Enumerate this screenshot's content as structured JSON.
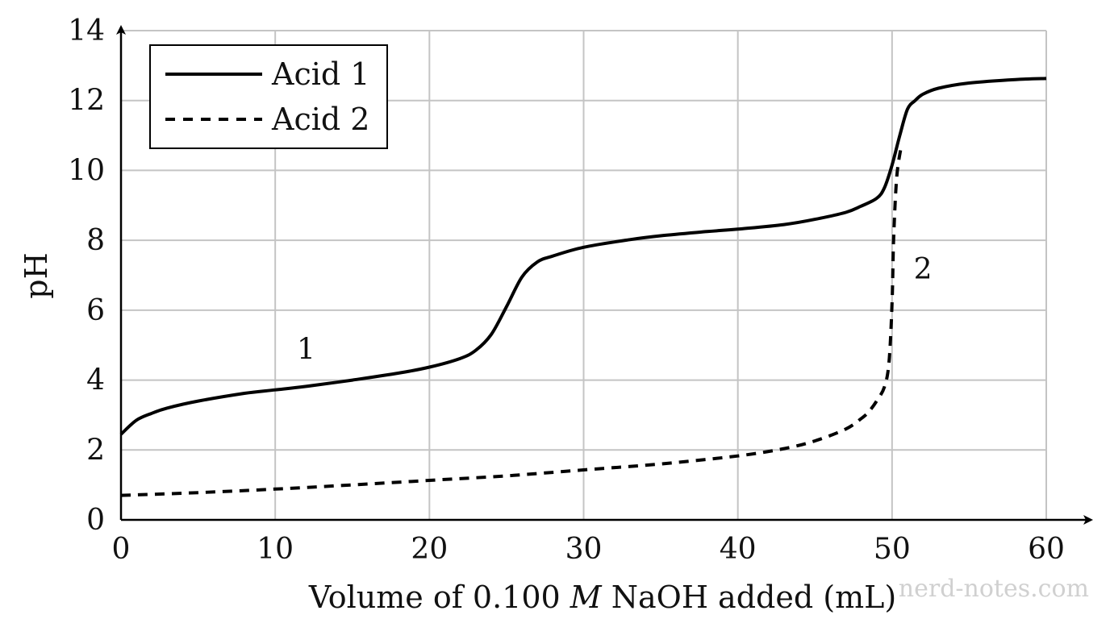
{
  "chart_data": {
    "type": "line",
    "title": "",
    "xlabel_prefix": "Volume of 0.100 ",
    "xlabel_italic": "M",
    "xlabel_suffix": " NaOH added (mL)",
    "ylabel": "pH",
    "xlim": [
      0,
      60
    ],
    "ylim": [
      0,
      14
    ],
    "xticks": [
      0,
      10,
      20,
      30,
      40,
      50,
      60
    ],
    "yticks": [
      0,
      2,
      4,
      6,
      8,
      10,
      12,
      14
    ],
    "grid": true,
    "legend_position": "top-left",
    "series": [
      {
        "name": "Acid 1",
        "style": "solid",
        "color": "#000000",
        "x": [
          0,
          1,
          2,
          3,
          5,
          8,
          10,
          12,
          15,
          18,
          20,
          22,
          23,
          24,
          25,
          26,
          27,
          28,
          30,
          33,
          35,
          38,
          40,
          43,
          45,
          47,
          48,
          49,
          49.5,
          50,
          50.5,
          51,
          51.5,
          52,
          53,
          55,
          58,
          60
        ],
        "y": [
          2.45,
          2.85,
          3.05,
          3.2,
          3.4,
          3.62,
          3.72,
          3.82,
          4.0,
          4.2,
          4.37,
          4.62,
          4.85,
          5.3,
          6.1,
          6.95,
          7.38,
          7.55,
          7.8,
          8.02,
          8.13,
          8.25,
          8.32,
          8.45,
          8.6,
          8.8,
          8.98,
          9.2,
          9.5,
          10.15,
          11.0,
          11.75,
          12.0,
          12.18,
          12.35,
          12.5,
          12.6,
          12.63
        ]
      },
      {
        "name": "Acid 2",
        "style": "dashed",
        "color": "#000000",
        "x": [
          0,
          5,
          10,
          15,
          20,
          25,
          30,
          35,
          40,
          43,
          45,
          47,
          48,
          48.5,
          49,
          49.5,
          49.8,
          50,
          50.1,
          50.3,
          50.6
        ],
        "y": [
          0.7,
          0.78,
          0.88,
          1.0,
          1.13,
          1.26,
          1.43,
          1.6,
          1.83,
          2.04,
          2.26,
          2.6,
          2.9,
          3.1,
          3.4,
          3.8,
          4.5,
          6.2,
          8.0,
          9.8,
          10.7
        ]
      }
    ],
    "annotations": [
      {
        "text": "1",
        "x": 12,
        "y": 4.6
      },
      {
        "text": "2",
        "x": 52,
        "y": 6.9
      }
    ]
  },
  "watermark": "nerd-notes.com"
}
